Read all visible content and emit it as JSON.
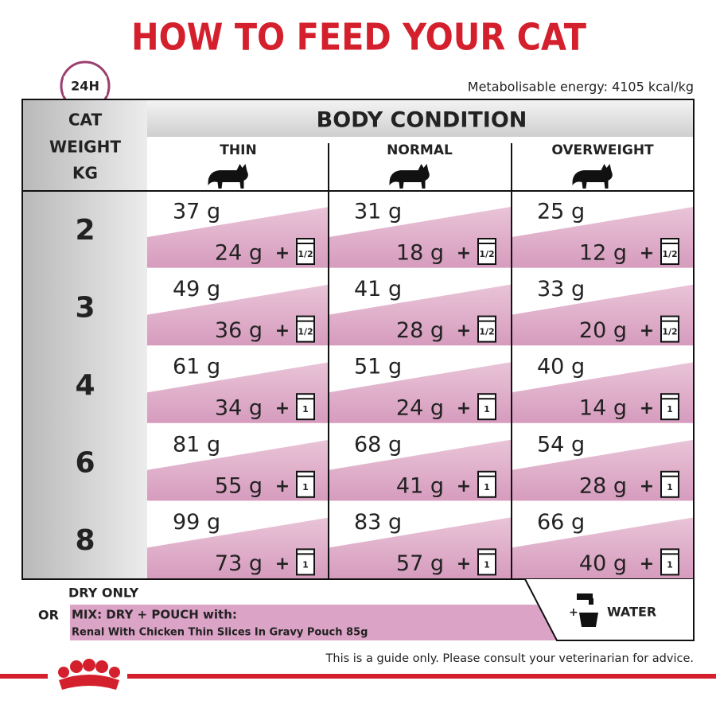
{
  "header": {
    "title": "HOW TO FEED YOUR CAT",
    "badge": "24H",
    "energy": "Metabolisable energy: 4105 kcal/kg"
  },
  "table": {
    "weight_header": [
      "CAT",
      "WEIGHT",
      "KG"
    ],
    "group_header": "BODY CONDITION",
    "columns": [
      "THIN",
      "NORMAL",
      "OVERWEIGHT"
    ],
    "plus": "+",
    "rows": [
      {
        "weight": "2",
        "cells": [
          {
            "dry": "37 g",
            "mix": "24 g",
            "pouch": "1/2"
          },
          {
            "dry": "31 g",
            "mix": "18 g",
            "pouch": "1/2"
          },
          {
            "dry": "25 g",
            "mix": "12 g",
            "pouch": "1/2"
          }
        ]
      },
      {
        "weight": "3",
        "cells": [
          {
            "dry": "49 g",
            "mix": "36 g",
            "pouch": "1/2"
          },
          {
            "dry": "41 g",
            "mix": "28 g",
            "pouch": "1/2"
          },
          {
            "dry": "33 g",
            "mix": "20 g",
            "pouch": "1/2"
          }
        ]
      },
      {
        "weight": "4",
        "cells": [
          {
            "dry": "61 g",
            "mix": "34 g",
            "pouch": "1"
          },
          {
            "dry": "51 g",
            "mix": "24 g",
            "pouch": "1"
          },
          {
            "dry": "40 g",
            "mix": "14 g",
            "pouch": "1"
          }
        ]
      },
      {
        "weight": "6",
        "cells": [
          {
            "dry": "81 g",
            "mix": "55 g",
            "pouch": "1"
          },
          {
            "dry": "68 g",
            "mix": "41 g",
            "pouch": "1"
          },
          {
            "dry": "54 g",
            "mix": "28 g",
            "pouch": "1"
          }
        ]
      },
      {
        "weight": "8",
        "cells": [
          {
            "dry": "99 g",
            "mix": "73 g",
            "pouch": "1"
          },
          {
            "dry": "83 g",
            "mix": "57 g",
            "pouch": "1"
          },
          {
            "dry": "66 g",
            "mix": "40 g",
            "pouch": "1"
          }
        ]
      }
    ]
  },
  "legend": {
    "dry_only": "DRY ONLY",
    "or": "OR",
    "mix": "MIX: DRY + POUCH with:",
    "product": "Renal With Chicken Thin Slices In Gravy Pouch 85g",
    "plus": "+",
    "water": "WATER"
  },
  "footer": {
    "note": "This is a guide only. Please consult your veterinarian for advice."
  }
}
